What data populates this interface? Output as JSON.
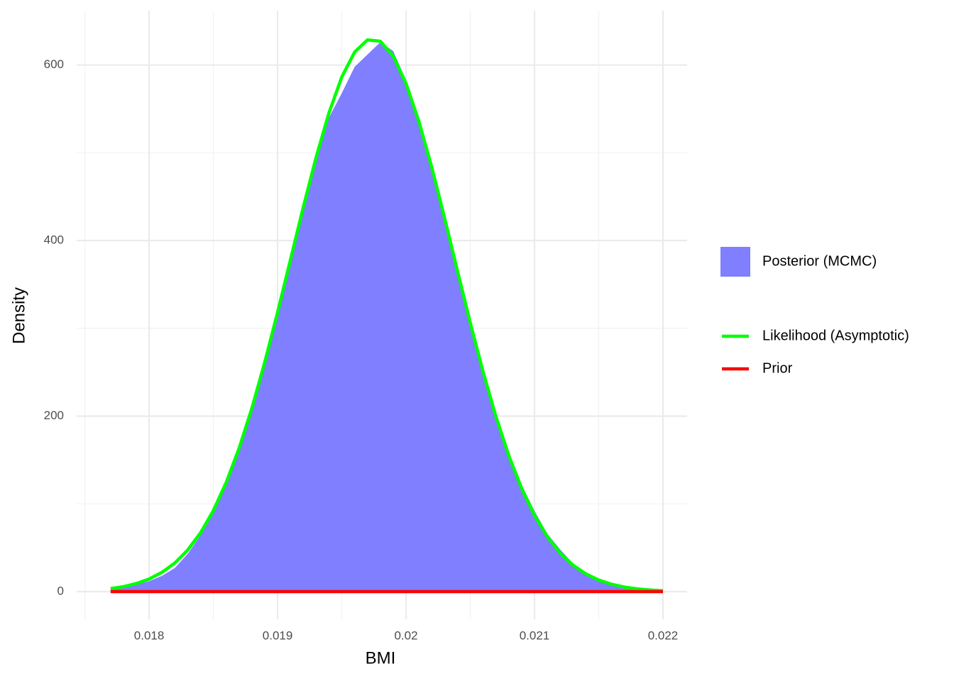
{
  "chart_data": {
    "type": "density",
    "x_label": "BMI",
    "y_label": "Density",
    "x": [
      0.0177,
      0.0178,
      0.0179,
      0.018,
      0.0181,
      0.0182,
      0.0183,
      0.0184,
      0.0185,
      0.0186,
      0.0187,
      0.0188,
      0.0189,
      0.019,
      0.0191,
      0.0192,
      0.0193,
      0.0194,
      0.0195,
      0.0196,
      0.0197,
      0.0198,
      0.0199,
      0.02,
      0.0201,
      0.0202,
      0.0203,
      0.0204,
      0.0205,
      0.0206,
      0.0207,
      0.0208,
      0.0209,
      0.021,
      0.0211,
      0.0212,
      0.0213,
      0.0214,
      0.0215,
      0.0216,
      0.0217,
      0.0218,
      0.0219,
      0.022
    ],
    "series": [
      {
        "name": "Posterior (MCMC)",
        "kind": "area",
        "color": "#7f7fff",
        "values": [
          3,
          5,
          8,
          12,
          18,
          27,
          43,
          64,
          92,
          126,
          165,
          210,
          262,
          318,
          377,
          436,
          490,
          540,
          568,
          598,
          612,
          626,
          616,
          583,
          538,
          486,
          428,
          366,
          305,
          249,
          198,
          157,
          122,
          92,
          66,
          48,
          32,
          21,
          13,
          8,
          5,
          3,
          2,
          1
        ]
      },
      {
        "name": "Likelihood (Asymptotic)",
        "kind": "line",
        "color": "#00ff00",
        "values": [
          3.5,
          5.7,
          9.2,
          14.4,
          22.0,
          32.6,
          47.4,
          67.0,
          92.4,
          124.4,
          163.3,
          209.1,
          261.2,
          318.1,
          377.9,
          437.9,
          494.8,
          545.4,
          586.4,
          614.8,
          628.7,
          627.2,
          610.2,
          579.0,
          535.9,
          483.8,
          426.0,
          365.8,
          306.4,
          250.4,
          199.5,
          155.0,
          117.6,
          86.9,
          62.7,
          44.0,
          30.2,
          20.2,
          13.2,
          8.4,
          5.2,
          3.2,
          1.9,
          1.1
        ]
      },
      {
        "name": "Prior",
        "kind": "line",
        "color": "#ff0000",
        "values": [
          0,
          0,
          0,
          0,
          0,
          0,
          0,
          0,
          0,
          0,
          0,
          0,
          0,
          0,
          0,
          0,
          0,
          0,
          0,
          0,
          0,
          0,
          0,
          0,
          0,
          0,
          0,
          0,
          0,
          0,
          0,
          0,
          0,
          0,
          0,
          0,
          0,
          0,
          0,
          0,
          0,
          0,
          0,
          0
        ]
      }
    ],
    "xlim": [
      0.017436,
      0.022188
    ],
    "ylim": [
      -31.5,
      662
    ],
    "xticks": [
      0.018,
      0.019,
      0.02,
      0.021,
      0.022
    ],
    "yticks": [
      0,
      200,
      400,
      600
    ],
    "xminor": [
      0.0175,
      0.0185,
      0.0195,
      0.0205,
      0.0215
    ],
    "yminor": [
      100,
      300,
      500
    ],
    "grid": true,
    "legend": "right"
  }
}
